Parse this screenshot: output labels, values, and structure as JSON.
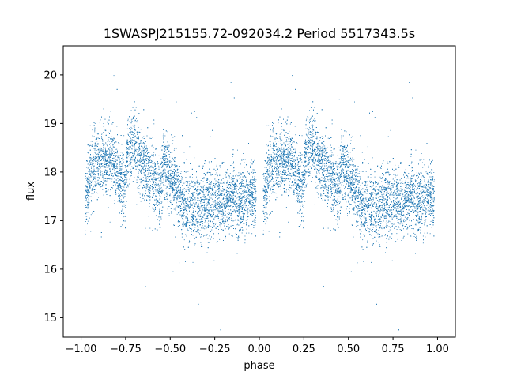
{
  "chart_data": {
    "type": "scatter",
    "title": "1SWASPJ215155.72-092034.2 Period 5517343.5s",
    "xlabel": "phase",
    "ylabel": "flux",
    "xlim": [
      -1.1,
      1.1
    ],
    "ylim": [
      14.6,
      20.6
    ],
    "xticks": [
      -1.0,
      -0.75,
      -0.5,
      -0.25,
      0.0,
      0.25,
      0.5,
      0.75,
      1.0
    ],
    "xtick_labels": [
      "−1.00",
      "−0.75",
      "−0.50",
      "−0.25",
      "0.00",
      "0.25",
      "0.50",
      "0.75",
      "1.00"
    ],
    "yticks": [
      15,
      16,
      17,
      18,
      19,
      20
    ],
    "ytick_labels": [
      "15",
      "16",
      "17",
      "18",
      "19",
      "20"
    ],
    "grid": false,
    "marker_color": "#1f77b4",
    "series": [
      {
        "phase_profile": [
          [
            0.0,
            17.35
          ],
          [
            0.02,
            17.4
          ],
          [
            0.04,
            17.8
          ],
          [
            0.06,
            18.05
          ],
          [
            0.08,
            18.15
          ],
          [
            0.1,
            18.2
          ],
          [
            0.12,
            18.25
          ],
          [
            0.14,
            18.3
          ],
          [
            0.16,
            18.3
          ],
          [
            0.18,
            18.2
          ],
          [
            0.2,
            18.1
          ],
          [
            0.22,
            17.9
          ],
          [
            0.24,
            17.6
          ],
          [
            0.26,
            18.4
          ],
          [
            0.28,
            18.55
          ],
          [
            0.3,
            18.5
          ],
          [
            0.32,
            18.4
          ],
          [
            0.34,
            18.25
          ],
          [
            0.36,
            18.1
          ],
          [
            0.38,
            18.0
          ],
          [
            0.4,
            17.9
          ],
          [
            0.42,
            17.7
          ],
          [
            0.44,
            17.4
          ],
          [
            0.46,
            18.2
          ],
          [
            0.48,
            18.1
          ],
          [
            0.5,
            17.95
          ],
          [
            0.52,
            17.8
          ],
          [
            0.54,
            17.55
          ],
          [
            0.56,
            17.4
          ],
          [
            0.58,
            17.35
          ],
          [
            0.6,
            17.3
          ],
          [
            0.62,
            17.3
          ],
          [
            0.64,
            17.35
          ],
          [
            0.66,
            17.3
          ],
          [
            0.68,
            17.3
          ],
          [
            0.7,
            17.35
          ],
          [
            0.72,
            17.4
          ],
          [
            0.74,
            17.45
          ],
          [
            0.76,
            17.5
          ],
          [
            0.78,
            17.45
          ],
          [
            0.8,
            17.2
          ],
          [
            0.82,
            17.45
          ],
          [
            0.84,
            17.5
          ],
          [
            0.86,
            17.45
          ],
          [
            0.88,
            17.4
          ],
          [
            0.9,
            17.4
          ],
          [
            0.92,
            17.35
          ],
          [
            0.94,
            17.45
          ],
          [
            0.96,
            17.55
          ],
          [
            0.98,
            17.4
          ],
          [
            1.0,
            17.35
          ]
        ],
        "scatter_sigma": 0.35,
        "point_count": 9000
      }
    ]
  }
}
